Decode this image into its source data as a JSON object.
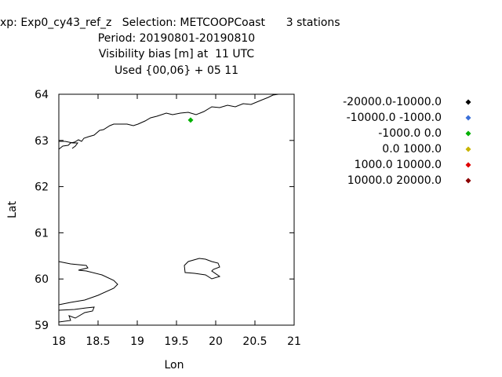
{
  "title": {
    "line1": "xp: Exp0_cy43_ref_z   Selection: METCOOPCoast      3 stations",
    "line2": "Period: 20190801-20190810",
    "line3": "Visibility bias [m] at  11 UTC",
    "line4": "Used {00,06} + 05 11"
  },
  "chart_data": {
    "type": "scatter",
    "xlabel": "Lon",
    "ylabel": "Lat",
    "xlim": [
      18,
      21
    ],
    "ylim": [
      59,
      64
    ],
    "xticks": [
      "18",
      "18.5",
      "19",
      "19.5",
      "20",
      "20.5",
      "21"
    ],
    "yticks": [
      "59",
      "60",
      "61",
      "62",
      "63",
      "64"
    ],
    "legend": [
      {
        "label": "-20000.0-10000.0",
        "color": "#000000"
      },
      {
        "label": "-10000.0 -1000.0",
        "color": "#3a6fd8"
      },
      {
        "label": "-1000.0 0.0",
        "color": "#00b000"
      },
      {
        "label": "0.0 1000.0",
        "color": "#c8b400"
      },
      {
        "label": "1000.0 10000.0",
        "color": "#e00000"
      },
      {
        "label": "10000.0 20000.0",
        "color": "#8b0000"
      }
    ],
    "points": [
      {
        "x": 19.68,
        "y": 63.44,
        "color": "#00b000"
      }
    ]
  }
}
